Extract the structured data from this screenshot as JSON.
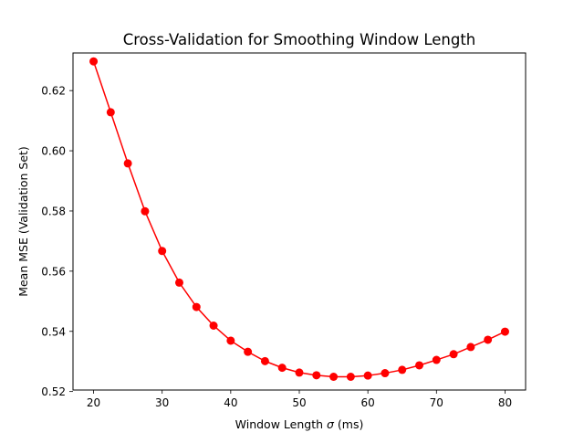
{
  "chart_data": {
    "type": "line",
    "title": "Cross-Validation for Smoothing Window Length",
    "xlabel_prefix": "Window Length ",
    "xlabel_symbol": "σ",
    "xlabel_suffix": " (ms)",
    "ylabel": "Mean MSE (Validation Set)",
    "xlim": [
      17,
      83
    ],
    "ylim": [
      0.5205,
      0.6325
    ],
    "xticks": [
      20,
      30,
      40,
      50,
      60,
      70,
      80
    ],
    "yticks": [
      0.52,
      0.54,
      0.56,
      0.58,
      0.6,
      0.62
    ],
    "xtick_labels": [
      "20",
      "30",
      "40",
      "50",
      "60",
      "70",
      "80"
    ],
    "ytick_labels": [
      "0.52",
      "0.54",
      "0.56",
      "0.58",
      "0.60",
      "0.62"
    ],
    "grid": false,
    "series": [
      {
        "color": "#ff0000",
        "marker": "circle",
        "x": [
          20,
          22.5,
          25,
          27.5,
          30,
          32.5,
          35,
          37.5,
          40,
          42.5,
          45,
          47.5,
          50,
          52.5,
          55,
          57.5,
          60,
          62.5,
          65,
          67.5,
          70,
          72.5,
          75,
          77.5,
          80
        ],
        "y": [
          0.6297,
          0.6128,
          0.5958,
          0.5799,
          0.5667,
          0.5562,
          0.5481,
          0.5419,
          0.5369,
          0.5332,
          0.5301,
          0.5279,
          0.5263,
          0.5254,
          0.5249,
          0.5249,
          0.5253,
          0.5261,
          0.5272,
          0.5287,
          0.5305,
          0.5324,
          0.5348,
          0.5372,
          0.5399
        ]
      }
    ]
  }
}
